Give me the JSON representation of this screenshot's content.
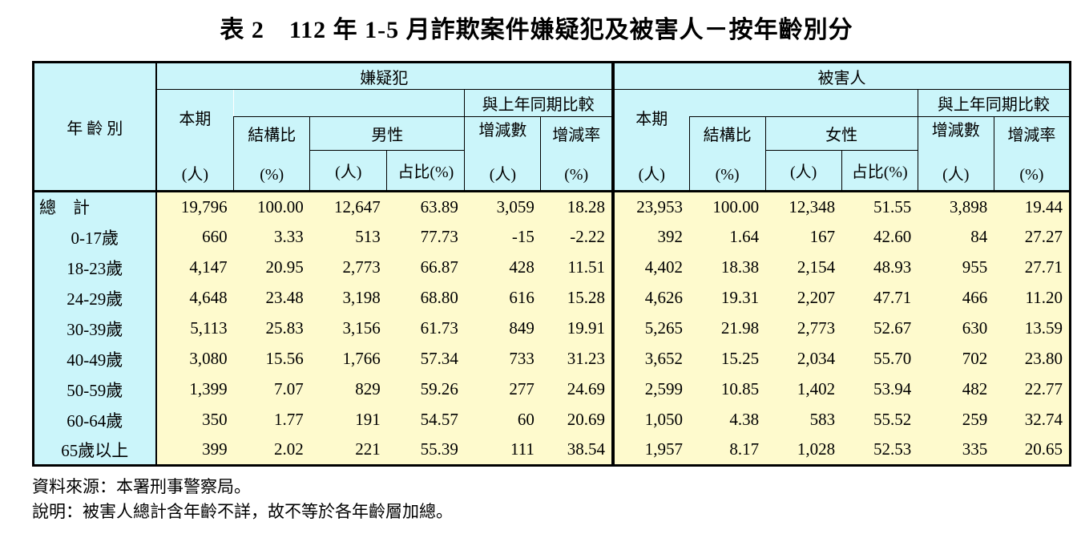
{
  "title": "表 2　112 年 1-5 月詐欺案件嫌疑犯及被害人－按年齡別分",
  "colors": {
    "header_bg": "#cbf5fa",
    "data_bg": "#fefacd",
    "border": "#000000",
    "text": "#000000"
  },
  "table": {
    "age_col_header": "年 齡 別",
    "sections": [
      {
        "title": "嫌疑犯",
        "gender_label": "男性"
      },
      {
        "title": "被害人",
        "gender_label": "女性"
      }
    ],
    "col_headers": {
      "current": "本期",
      "current_unit": "(人)",
      "ratio": "結構比",
      "ratio_unit": "(%)",
      "gender_unit": "(人)",
      "gender_share": "占比(%)",
      "yoy": "與上年同期比較",
      "diff": "增減數",
      "diff_unit": "(人)",
      "rate": "增減率",
      "rate_unit": "(%)"
    },
    "rows": [
      {
        "label": "總　計",
        "s": [
          "19,796",
          "100.00",
          "12,647",
          "63.89",
          "3,059",
          "18.28"
        ],
        "v": [
          "23,953",
          "100.00",
          "12,348",
          "51.55",
          "3,898",
          "19.44"
        ]
      },
      {
        "label": "0-17歲",
        "s": [
          "660",
          "3.33",
          "513",
          "77.73",
          "-15",
          "-2.22"
        ],
        "v": [
          "392",
          "1.64",
          "167",
          "42.60",
          "84",
          "27.27"
        ]
      },
      {
        "label": "18-23歲",
        "s": [
          "4,147",
          "20.95",
          "2,773",
          "66.87",
          "428",
          "11.51"
        ],
        "v": [
          "4,402",
          "18.38",
          "2,154",
          "48.93",
          "955",
          "27.71"
        ]
      },
      {
        "label": "24-29歲",
        "s": [
          "4,648",
          "23.48",
          "3,198",
          "68.80",
          "616",
          "15.28"
        ],
        "v": [
          "4,626",
          "19.31",
          "2,207",
          "47.71",
          "466",
          "11.20"
        ]
      },
      {
        "label": "30-39歲",
        "s": [
          "5,113",
          "25.83",
          "3,156",
          "61.73",
          "849",
          "19.91"
        ],
        "v": [
          "5,265",
          "21.98",
          "2,773",
          "52.67",
          "630",
          "13.59"
        ]
      },
      {
        "label": "40-49歲",
        "s": [
          "3,080",
          "15.56",
          "1,766",
          "57.34",
          "733",
          "31.23"
        ],
        "v": [
          "3,652",
          "15.25",
          "2,034",
          "55.70",
          "702",
          "23.80"
        ]
      },
      {
        "label": "50-59歲",
        "s": [
          "1,399",
          "7.07",
          "829",
          "59.26",
          "277",
          "24.69"
        ],
        "v": [
          "2,599",
          "10.85",
          "1,402",
          "53.94",
          "482",
          "22.77"
        ]
      },
      {
        "label": "60-64歲",
        "s": [
          "350",
          "1.77",
          "191",
          "54.57",
          "60",
          "20.69"
        ],
        "v": [
          "1,050",
          "4.38",
          "583",
          "55.52",
          "259",
          "32.74"
        ]
      },
      {
        "label": "65歲以上",
        "s": [
          "399",
          "2.02",
          "221",
          "55.39",
          "111",
          "38.54"
        ],
        "v": [
          "1,957",
          "8.17",
          "1,028",
          "52.53",
          "335",
          "20.65"
        ]
      }
    ]
  },
  "footer": {
    "source": "資料來源：本署刑事警察局。",
    "note": "說明：被害人總計含年齡不詳，故不等於各年齡層加總。"
  }
}
